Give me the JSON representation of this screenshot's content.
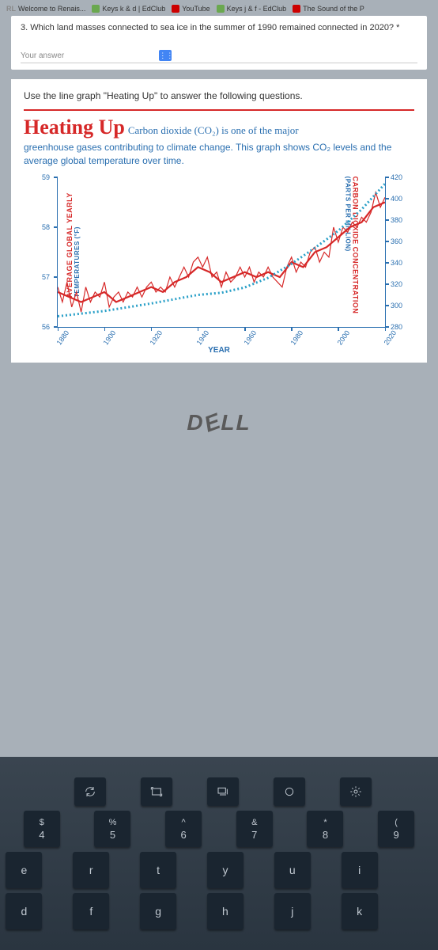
{
  "bookmarks": [
    {
      "label": "Welcome to Renais...",
      "color": "#888"
    },
    {
      "label": "Keys k & d | EdClub",
      "color": "#6aa84f"
    },
    {
      "label": "YouTube",
      "color": "#cc0000"
    },
    {
      "label": "Keys j & f - EdClub",
      "color": "#6aa84f"
    },
    {
      "label": "The Sound of the P",
      "color": "#cc0000"
    }
  ],
  "question": "3. Which land masses connected to sea ice in the summer of 1990 remained connected in 2020? *",
  "answer_placeholder": "Your answer",
  "instruction": "Use the line graph \"Heating Up\" to answer the following questions.",
  "chart": {
    "title_main": "Heating Up",
    "title_sub": "Carbon dioxide (CO₂) is one of the major",
    "desc": "greenhouse gases contributing to climate change. This graph shows CO₂ levels and the average global temperature over time.",
    "y_left_label": "AVERAGE GLOBAL YEARLY",
    "y_left_sub": "TEMPERATURES (°F)",
    "y_right_label": "CARBON DIOXIDE CONCENTRATION",
    "y_right_sub": "(PARTS PER MILLION)",
    "x_label": "YEAR",
    "y_left_ticks": [
      56,
      57,
      58,
      59
    ],
    "y_left_lim": [
      56,
      59
    ],
    "y_right_ticks": [
      280,
      300,
      320,
      340,
      360,
      380,
      400,
      420
    ],
    "y_right_lim": [
      280,
      420
    ],
    "x_ticks": [
      1880,
      1900,
      1920,
      1940,
      1960,
      1980,
      2000,
      2020
    ],
    "x_lim": [
      1880,
      2020
    ],
    "temp_color": "#d62828",
    "co2_color": "#2aa0c8",
    "temp_series": [
      [
        1880,
        56.7
      ],
      [
        1885,
        56.6
      ],
      [
        1890,
        56.5
      ],
      [
        1895,
        56.6
      ],
      [
        1900,
        56.7
      ],
      [
        1905,
        56.5
      ],
      [
        1910,
        56.6
      ],
      [
        1915,
        56.7
      ],
      [
        1920,
        56.8
      ],
      [
        1925,
        56.7
      ],
      [
        1930,
        56.9
      ],
      [
        1935,
        57.0
      ],
      [
        1940,
        57.2
      ],
      [
        1945,
        57.1
      ],
      [
        1950,
        56.9
      ],
      [
        1955,
        57.0
      ],
      [
        1960,
        57.1
      ],
      [
        1965,
        57.0
      ],
      [
        1970,
        57.1
      ],
      [
        1975,
        57.0
      ],
      [
        1980,
        57.3
      ],
      [
        1985,
        57.2
      ],
      [
        1990,
        57.5
      ],
      [
        1995,
        57.6
      ],
      [
        2000,
        57.8
      ],
      [
        2005,
        58.0
      ],
      [
        2010,
        58.1
      ],
      [
        2015,
        58.4
      ],
      [
        2020,
        58.5
      ]
    ],
    "temp_jitter_series": [
      [
        1880,
        56.8
      ],
      [
        1882,
        56.5
      ],
      [
        1884,
        56.9
      ],
      [
        1886,
        56.4
      ],
      [
        1888,
        56.7
      ],
      [
        1890,
        56.3
      ],
      [
        1892,
        56.8
      ],
      [
        1894,
        56.5
      ],
      [
        1896,
        56.7
      ],
      [
        1898,
        56.6
      ],
      [
        1900,
        56.9
      ],
      [
        1902,
        56.4
      ],
      [
        1904,
        56.6
      ],
      [
        1906,
        56.7
      ],
      [
        1908,
        56.5
      ],
      [
        1910,
        56.7
      ],
      [
        1912,
        56.6
      ],
      [
        1914,
        56.8
      ],
      [
        1916,
        56.6
      ],
      [
        1918,
        56.8
      ],
      [
        1920,
        56.9
      ],
      [
        1922,
        56.7
      ],
      [
        1924,
        56.8
      ],
      [
        1926,
        56.7
      ],
      [
        1928,
        57.0
      ],
      [
        1930,
        56.8
      ],
      [
        1932,
        57.0
      ],
      [
        1934,
        57.2
      ],
      [
        1936,
        57.0
      ],
      [
        1938,
        57.3
      ],
      [
        1940,
        57.4
      ],
      [
        1942,
        57.2
      ],
      [
        1944,
        57.4
      ],
      [
        1946,
        57.0
      ],
      [
        1948,
        57.1
      ],
      [
        1950,
        56.8
      ],
      [
        1952,
        57.1
      ],
      [
        1954,
        56.9
      ],
      [
        1956,
        57.0
      ],
      [
        1958,
        57.2
      ],
      [
        1960,
        57.0
      ],
      [
        1962,
        57.2
      ],
      [
        1964,
        56.9
      ],
      [
        1966,
        57.1
      ],
      [
        1968,
        57.0
      ],
      [
        1970,
        57.2
      ],
      [
        1972,
        57.0
      ],
      [
        1974,
        56.9
      ],
      [
        1976,
        56.8
      ],
      [
        1978,
        57.2
      ],
      [
        1980,
        57.4
      ],
      [
        1982,
        57.1
      ],
      [
        1984,
        57.3
      ],
      [
        1986,
        57.2
      ],
      [
        1988,
        57.5
      ],
      [
        1990,
        57.6
      ],
      [
        1992,
        57.3
      ],
      [
        1994,
        57.5
      ],
      [
        1996,
        57.4
      ],
      [
        1998,
        58.0
      ],
      [
        2000,
        57.7
      ],
      [
        2002,
        58.0
      ],
      [
        2004,
        57.9
      ],
      [
        2006,
        58.1
      ],
      [
        2008,
        58.0
      ],
      [
        2010,
        58.2
      ],
      [
        2012,
        58.1
      ],
      [
        2014,
        58.3
      ],
      [
        2016,
        58.7
      ],
      [
        2018,
        58.4
      ],
      [
        2020,
        58.6
      ]
    ],
    "co2_series": [
      [
        1880,
        290
      ],
      [
        1900,
        295
      ],
      [
        1920,
        302
      ],
      [
        1940,
        310
      ],
      [
        1950,
        312
      ],
      [
        1960,
        317
      ],
      [
        1970,
        326
      ],
      [
        1980,
        339
      ],
      [
        1990,
        354
      ],
      [
        2000,
        370
      ],
      [
        2010,
        390
      ],
      [
        2020,
        414
      ]
    ]
  },
  "dell_logo": "DELL",
  "keyboard": {
    "fn_row": [
      "refresh",
      "fullscreen",
      "overview",
      "circle",
      "settings"
    ],
    "num_row": [
      {
        "upper": "$",
        "lower": "4"
      },
      {
        "upper": "%",
        "lower": "5"
      },
      {
        "upper": "^",
        "lower": "6"
      },
      {
        "upper": "&",
        "lower": "7"
      },
      {
        "upper": "*",
        "lower": "8"
      },
      {
        "upper": "(",
        "lower": "9"
      }
    ],
    "row2": [
      "r",
      "t",
      "y",
      "u",
      "i"
    ],
    "row2_left": "e",
    "row3_left": "d",
    "row3": [
      "f",
      "g",
      "h",
      "j",
      "k"
    ]
  }
}
